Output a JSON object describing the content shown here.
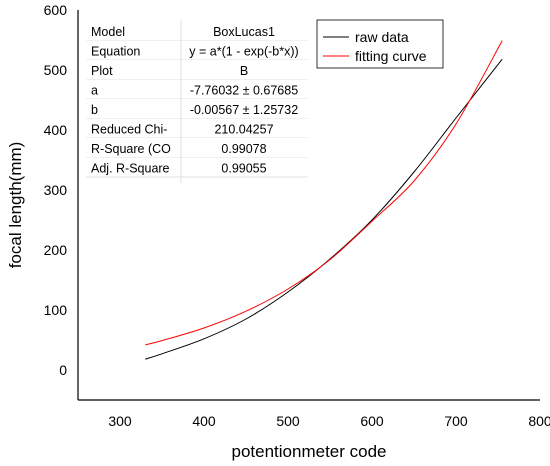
{
  "chart_data": {
    "type": "line",
    "xlabel": "potentionmeter code",
    "ylabel": "focal length(mm)",
    "xlim": [
      250,
      800
    ],
    "ylim": [
      -50,
      600
    ],
    "x_ticks": [
      300,
      400,
      500,
      600,
      700,
      800
    ],
    "y_ticks": [
      0,
      100,
      200,
      300,
      400,
      500,
      600
    ],
    "grid": false,
    "legend_position": "top-right",
    "series": [
      {
        "name": "raw data",
        "color": "#000000",
        "x": [
          330,
          350,
          400,
          450,
          500,
          550,
          600,
          650,
          700,
          755
        ],
        "y": [
          18,
          27,
          52,
          85,
          130,
          185,
          250,
          330,
          420,
          518
        ]
      },
      {
        "name": "fitting curve",
        "color": "#ff0000",
        "x": [
          330,
          350,
          400,
          450,
          500,
          550,
          600,
          650,
          700,
          755
        ],
        "y": [
          42,
          49,
          70,
          98,
          135,
          184,
          248,
          315,
          410,
          549
        ]
      }
    ],
    "stats_table": {
      "rows": [
        {
          "label": "Model",
          "value": "BoxLucas1"
        },
        {
          "label": "Equation",
          "value": "y = a*(1 - exp(-b*x))"
        },
        {
          "label": "Plot",
          "value": "B"
        },
        {
          "label": "a",
          "value": "-7.76032 ± 0.67685"
        },
        {
          "label": "b",
          "value": "-0.00567 ± 1.25732"
        },
        {
          "label": "Reduced Chi-",
          "value": "210.04257"
        },
        {
          "label": "R-Square (CO",
          "value": "0.99078"
        },
        {
          "label": "Adj. R-Square",
          "value": "0.99055"
        }
      ]
    }
  }
}
